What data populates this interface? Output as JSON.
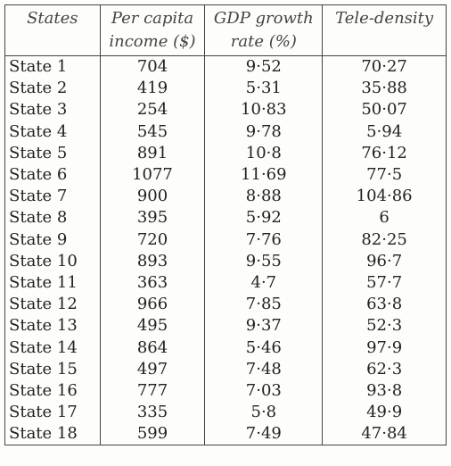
{
  "table": {
    "header": [
      [
        "States"
      ],
      [
        "Per capita",
        "income ($)"
      ],
      [
        "GDP growth",
        "rate (%)"
      ],
      [
        "Tele-density"
      ]
    ],
    "rows": [
      [
        "State 1",
        "704",
        "9·52",
        "70·27"
      ],
      [
        "State 2",
        "419",
        "5·31",
        "35·88"
      ],
      [
        "State 3",
        "254",
        "10·83",
        "50·07"
      ],
      [
        "State 4",
        "545",
        "9·78",
        "5·94"
      ],
      [
        "State 5",
        "891",
        "10·8",
        "76·12"
      ],
      [
        "State 6",
        "1077",
        "11·69",
        "77·5"
      ],
      [
        "State 7",
        "900",
        "8·88",
        "104·86"
      ],
      [
        "State 8",
        "395",
        "5·92",
        "6"
      ],
      [
        "State 9",
        "720",
        "7·76",
        "82·25"
      ],
      [
        "State 10",
        "893",
        "9·55",
        "96·7"
      ],
      [
        "State 11",
        "363",
        "4·7",
        "57·7"
      ],
      [
        "State 12",
        "966",
        "7·85",
        "63·8"
      ],
      [
        "State 13",
        "495",
        "9·37",
        "52·3"
      ],
      [
        "State 14",
        "864",
        "5·46",
        "97·9"
      ],
      [
        "State 15",
        "497",
        "7·48",
        "62·3"
      ],
      [
        "State 16",
        "777",
        "7·03",
        "93·8"
      ],
      [
        "State 17",
        "335",
        "5·8",
        "49·9"
      ],
      [
        "State 18",
        "599",
        "7·49",
        "47·84"
      ]
    ]
  }
}
